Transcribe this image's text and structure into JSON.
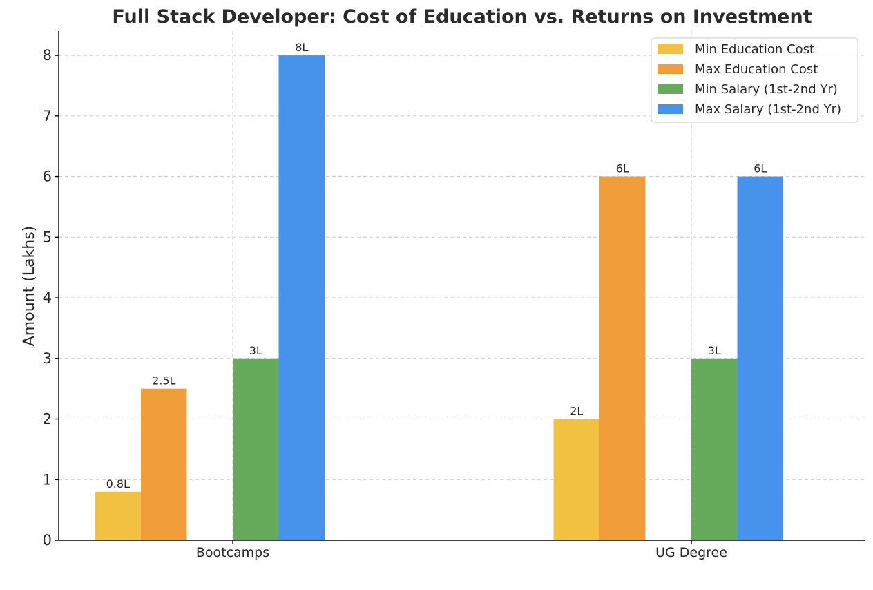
{
  "chart_data": {
    "type": "bar",
    "title": "Full Stack Developer: Cost of Education vs. Returns on Investment",
    "xlabel": "",
    "ylabel": "Amount (Lakhs)",
    "ylim": [
      0,
      8.4
    ],
    "yticks": [
      "0",
      "1",
      "2",
      "3",
      "4",
      "5",
      "6",
      "7",
      "8"
    ],
    "categories": [
      "Bootcamps",
      "UG Degree"
    ],
    "grid": true,
    "legend_position": "top-right",
    "series": [
      {
        "name": "Min Education Cost",
        "color": "#F2C142",
        "values": [
          0.8,
          2
        ],
        "labels": [
          "0.8L",
          "2L"
        ]
      },
      {
        "name": "Max Education Cost",
        "color": "#F09D3A",
        "values": [
          2.5,
          6
        ],
        "labels": [
          "2.5L",
          "6L"
        ]
      },
      {
        "name": "Min Salary (1st-2nd Yr)",
        "color": "#66AB5C",
        "values": [
          3,
          3
        ],
        "labels": [
          "3L",
          "3L"
        ]
      },
      {
        "name": "Max Salary (1st-2nd Yr)",
        "color": "#4793EC",
        "values": [
          8,
          6
        ],
        "labels": [
          "8L",
          "6L"
        ]
      }
    ]
  }
}
